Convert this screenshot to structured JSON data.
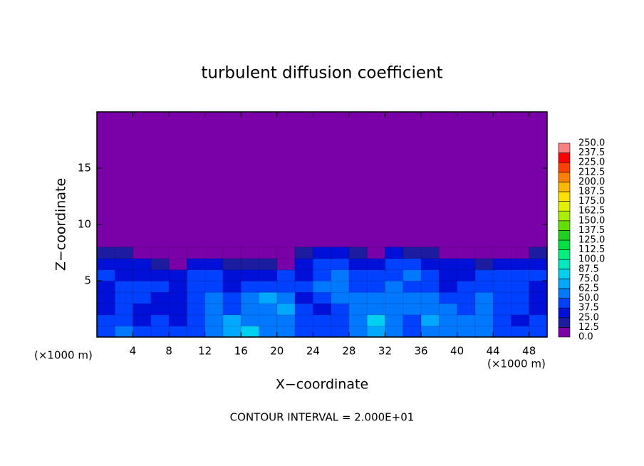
{
  "chart_data": {
    "type": "heatmap",
    "title": "turbulent diffusion coefficient",
    "x_label": "X−coordinate",
    "y_label": "Z−coordinate",
    "x_unit_left": "(×1000 m)",
    "x_unit_right": "(×1000 m)",
    "annotation": "CONTOUR INTERVAL = 2.000E+01",
    "xlim": [
      0,
      50
    ],
    "ylim": [
      0,
      20
    ],
    "xticks": [
      4,
      8,
      12,
      16,
      20,
      24,
      28,
      32,
      36,
      40,
      44,
      48
    ],
    "yticks": [
      5,
      10,
      15
    ],
    "x": [
      1,
      3,
      5,
      7,
      9,
      11,
      13,
      15,
      17,
      19,
      21,
      23,
      25,
      27,
      29,
      31,
      33,
      35,
      37,
      39,
      41,
      43,
      45,
      47,
      49
    ],
    "y": [
      0.5,
      1.5,
      2.5,
      3.5,
      4.5,
      5.5,
      6.5,
      7.5
    ],
    "z": [
      [
        45,
        50,
        45,
        40,
        45,
        40,
        50,
        70,
        80,
        60,
        50,
        45,
        40,
        45,
        50,
        70,
        55,
        45,
        50,
        55,
        60,
        50,
        45,
        40,
        45
      ],
      [
        40,
        40,
        35,
        40,
        35,
        45,
        60,
        65,
        60,
        55,
        60,
        45,
        40,
        45,
        60,
        75,
        55,
        45,
        65,
        60,
        55,
        50,
        40,
        35,
        40
      ],
      [
        35,
        40,
        35,
        30,
        35,
        40,
        55,
        45,
        50,
        60,
        70,
        40,
        35,
        40,
        55,
        60,
        50,
        55,
        60,
        50,
        45,
        55,
        45,
        40,
        35
      ],
      [
        30,
        45,
        40,
        35,
        30,
        45,
        50,
        40,
        50,
        65,
        55,
        35,
        40,
        50,
        55,
        50,
        55,
        50,
        55,
        40,
        45,
        50,
        45,
        40,
        35
      ],
      [
        35,
        40,
        45,
        40,
        30,
        45,
        45,
        35,
        40,
        40,
        40,
        45,
        50,
        55,
        45,
        40,
        60,
        45,
        40,
        35,
        40,
        40,
        45,
        40,
        35
      ],
      [
        40,
        35,
        35,
        30,
        30,
        40,
        45,
        35,
        30,
        35,
        40,
        35,
        45,
        50,
        40,
        40,
        45,
        50,
        40,
        35,
        35,
        40,
        45,
        40,
        40
      ],
      [
        35,
        30,
        25,
        15,
        5,
        30,
        35,
        20,
        15,
        20,
        10,
        35,
        40,
        40,
        35,
        30,
        40,
        40,
        35,
        30,
        25,
        20,
        30,
        30,
        35
      ],
      [
        20,
        15,
        5,
        0,
        0,
        5,
        10,
        0,
        0,
        0,
        0,
        20,
        25,
        25,
        20,
        10,
        25,
        20,
        15,
        10,
        5,
        0,
        5,
        10,
        15
      ]
    ],
    "levels": [
      {
        "value": 0,
        "label": "0.0"
      },
      {
        "value": 12.5,
        "label": "12.5"
      },
      {
        "value": 25,
        "label": "25.0"
      },
      {
        "value": 37.5,
        "label": "37.5"
      },
      {
        "value": 50,
        "label": "50.0"
      },
      {
        "value": 62.5,
        "label": "62.5"
      },
      {
        "value": 75,
        "label": "75.0"
      },
      {
        "value": 87.5,
        "label": "87.5"
      },
      {
        "value": 100,
        "label": "100.0"
      },
      {
        "value": 112.5,
        "label": "112.5"
      },
      {
        "value": 125,
        "label": "125.0"
      },
      {
        "value": 137.5,
        "label": "137.5"
      },
      {
        "value": 150,
        "label": "150.0"
      },
      {
        "value": 162.5,
        "label": "162.5"
      },
      {
        "value": 175,
        "label": "175.0"
      },
      {
        "value": 187.5,
        "label": "187.5"
      },
      {
        "value": 200,
        "label": "200.0"
      },
      {
        "value": 212.5,
        "label": "212.5"
      },
      {
        "value": 225,
        "label": "225.0"
      },
      {
        "value": 237.5,
        "label": "237.5"
      },
      {
        "value": 250,
        "label": "250.0"
      }
    ],
    "colors": [
      "#7a00a8",
      "#1c1ca0",
      "#0010d8",
      "#0040ff",
      "#0078ff",
      "#00a8ff",
      "#00d0f0",
      "#00e8c0",
      "#00f080",
      "#00e040",
      "#20d020",
      "#60e000",
      "#a8f000",
      "#e0f000",
      "#ffe000",
      "#ffb800",
      "#ff8000",
      "#ff4000",
      "#ff0000",
      "#ff8080"
    ]
  }
}
